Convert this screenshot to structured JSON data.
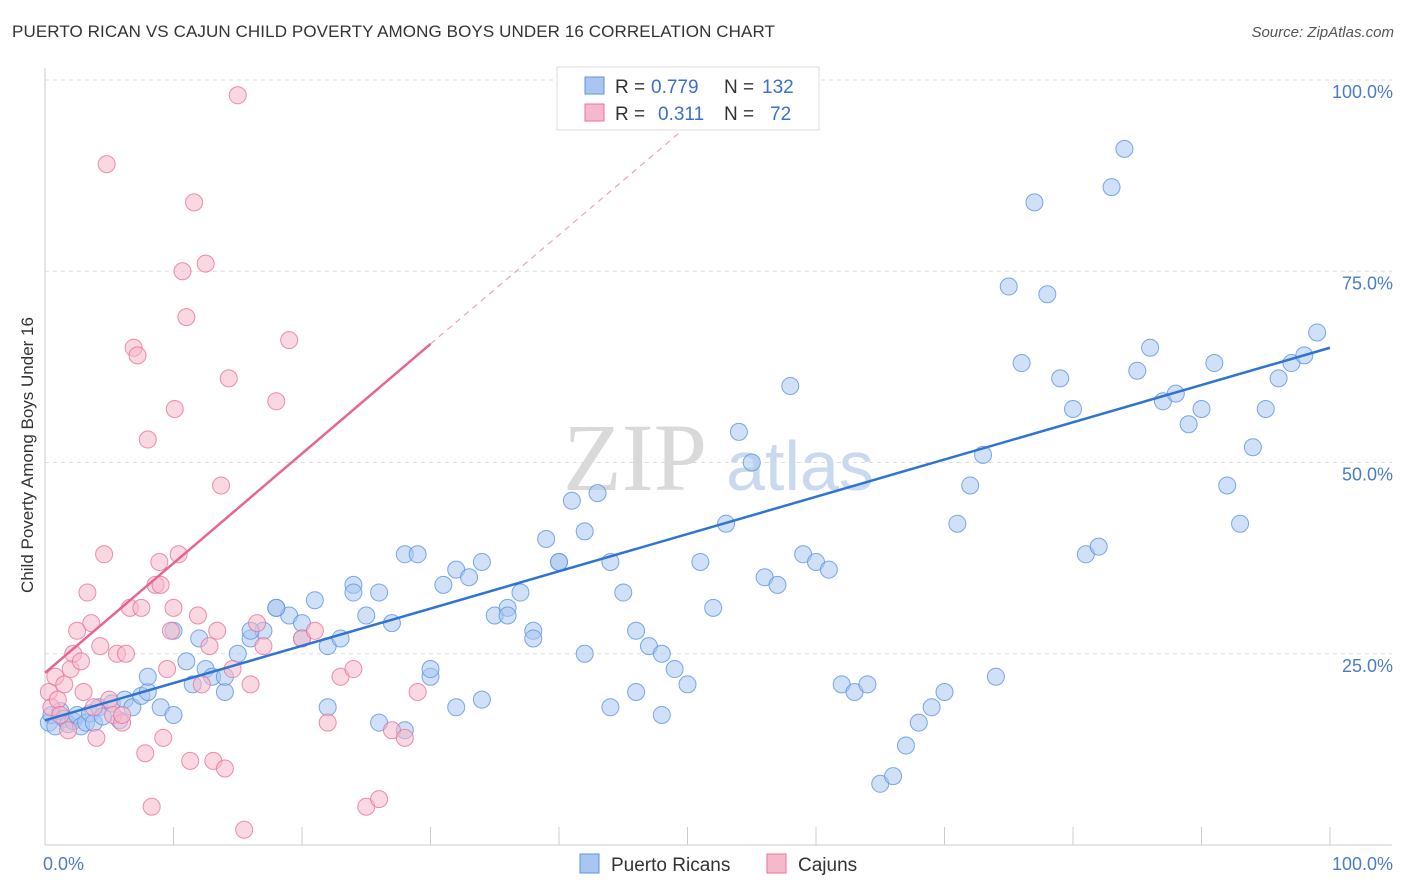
{
  "title": "PUERTO RICAN VS CAJUN CHILD POVERTY AMONG BOYS UNDER 16 CORRELATION CHART",
  "source": "Source: ZipAtlas.com",
  "watermark": {
    "zip": "ZIP",
    "atlas": "atlas"
  },
  "colors": {
    "blue": "#5b93e3",
    "blue_fill": "#a9c6f0",
    "pink": "#e8739a",
    "pink_fill": "#f6b8cb",
    "grid": "#dddddd",
    "tick_text": "#4a7cc9"
  },
  "chart_data": {
    "type": "scatter",
    "title": "PUERTO RICAN VS CAJUN CHILD POVERTY AMONG BOYS UNDER 16 CORRELATION CHART",
    "xlabel": "",
    "ylabel": "Child Poverty Among Boys Under 16",
    "xlim": [
      0,
      100
    ],
    "ylim": [
      0,
      100
    ],
    "x_tick_labels": [
      "0.0%",
      "100.0%"
    ],
    "y_tick_labels": [
      "25.0%",
      "50.0%",
      "75.0%",
      "100.0%"
    ],
    "y_ticks": [
      25,
      50,
      75,
      100
    ],
    "grid": true,
    "legend_top": [
      {
        "r_label": "R =",
        "r": "0.779",
        "n_label": "N =",
        "n": "132"
      },
      {
        "r_label": "R =",
        "r": "0.311",
        "n_label": "N =",
        "n": "72"
      }
    ],
    "legend_bottom": [
      "Puerto Ricans",
      "Cajuns"
    ],
    "series": [
      {
        "name": "Puerto Ricans",
        "trend": {
          "x": [
            0,
            100
          ],
          "y": [
            16.3,
            65.0
          ]
        },
        "points": [
          [
            0.3,
            16
          ],
          [
            0.5,
            17
          ],
          [
            0.8,
            15.5
          ],
          [
            1.2,
            17.5
          ],
          [
            1.5,
            16.5
          ],
          [
            1.8,
            15.8
          ],
          [
            2.2,
            16.2
          ],
          [
            2.5,
            17
          ],
          [
            2.8,
            15.5
          ],
          [
            3.2,
            16
          ],
          [
            3.5,
            17.2
          ],
          [
            3.8,
            16
          ],
          [
            4.2,
            18
          ],
          [
            4.5,
            16.8
          ],
          [
            5.2,
            18.5
          ],
          [
            5.8,
            16.3
          ],
          [
            6.2,
            19
          ],
          [
            6.8,
            18
          ],
          [
            7.5,
            19.5
          ],
          [
            8,
            20
          ],
          [
            9,
            18
          ],
          [
            10,
            17
          ],
          [
            11,
            24
          ],
          [
            11.5,
            21
          ],
          [
            12.5,
            23
          ],
          [
            13,
            22
          ],
          [
            14,
            20
          ],
          [
            15,
            25
          ],
          [
            16,
            27
          ],
          [
            17,
            28
          ],
          [
            18,
            31
          ],
          [
            19,
            30
          ],
          [
            20,
            29
          ],
          [
            21,
            32
          ],
          [
            22,
            26
          ],
          [
            23,
            27
          ],
          [
            24,
            34
          ],
          [
            25,
            30
          ],
          [
            26,
            33
          ],
          [
            27,
            29
          ],
          [
            28,
            38
          ],
          [
            29,
            38
          ],
          [
            30,
            22
          ],
          [
            31,
            34
          ],
          [
            32,
            36
          ],
          [
            33,
            35
          ],
          [
            34,
            37
          ],
          [
            35,
            30
          ],
          [
            36,
            31
          ],
          [
            37,
            33
          ],
          [
            38,
            28
          ],
          [
            39,
            40
          ],
          [
            40,
            37
          ],
          [
            41,
            45
          ],
          [
            42,
            41
          ],
          [
            43,
            46
          ],
          [
            44,
            37
          ],
          [
            45,
            33
          ],
          [
            46,
            28
          ],
          [
            47,
            26
          ],
          [
            48,
            25
          ],
          [
            49,
            23
          ],
          [
            50,
            21
          ],
          [
            51,
            37
          ],
          [
            52,
            31
          ],
          [
            53,
            42
          ],
          [
            54,
            54
          ],
          [
            55,
            50
          ],
          [
            56,
            35
          ],
          [
            57,
            34
          ],
          [
            58,
            60
          ],
          [
            59,
            38
          ],
          [
            60,
            37
          ],
          [
            61,
            36
          ],
          [
            62,
            21
          ],
          [
            63,
            20
          ],
          [
            64,
            21
          ],
          [
            65,
            8
          ],
          [
            66,
            9
          ],
          [
            67,
            13
          ],
          [
            68,
            16
          ],
          [
            69,
            18
          ],
          [
            70,
            20
          ],
          [
            71,
            42
          ],
          [
            72,
            47
          ],
          [
            73,
            51
          ],
          [
            74,
            22
          ],
          [
            75,
            73
          ],
          [
            76,
            63
          ],
          [
            77,
            84
          ],
          [
            78,
            72
          ],
          [
            79,
            61
          ],
          [
            80,
            57
          ],
          [
            81,
            38
          ],
          [
            82,
            39
          ],
          [
            83,
            86
          ],
          [
            84,
            91
          ],
          [
            85,
            62
          ],
          [
            86,
            65
          ],
          [
            87,
            58
          ],
          [
            88,
            59
          ],
          [
            89,
            55
          ],
          [
            90,
            57
          ],
          [
            91,
            63
          ],
          [
            92,
            47
          ],
          [
            93,
            42
          ],
          [
            94,
            52
          ],
          [
            95,
            57
          ],
          [
            96,
            61
          ],
          [
            97,
            63
          ],
          [
            98,
            64
          ],
          [
            99,
            67
          ],
          [
            18,
            31
          ],
          [
            20,
            27
          ],
          [
            22,
            18
          ],
          [
            24,
            33
          ],
          [
            26,
            16
          ],
          [
            28,
            15
          ],
          [
            30,
            23
          ],
          [
            32,
            18
          ],
          [
            34,
            19
          ],
          [
            36,
            30
          ],
          [
            38,
            27
          ],
          [
            40,
            37
          ],
          [
            42,
            25
          ],
          [
            44,
            18
          ],
          [
            46,
            20
          ],
          [
            48,
            17
          ],
          [
            12,
            27
          ],
          [
            14,
            22
          ],
          [
            16,
            28
          ],
          [
            10,
            28
          ],
          [
            8,
            22
          ]
        ]
      },
      {
        "name": "Cajuns",
        "trend": {
          "x": [
            0,
            30
          ],
          "y": [
            22.5,
            65.5
          ]
        },
        "trend_dashed": {
          "x": [
            30,
            50
          ],
          "y": [
            65.5,
            94
          ]
        },
        "points": [
          [
            0.3,
            20
          ],
          [
            0.5,
            18
          ],
          [
            0.8,
            22
          ],
          [
            1,
            19
          ],
          [
            1.2,
            17
          ],
          [
            1.5,
            21
          ],
          [
            1.8,
            15
          ],
          [
            2,
            23
          ],
          [
            2.2,
            25
          ],
          [
            2.5,
            28
          ],
          [
            2.8,
            24
          ],
          [
            3,
            20
          ],
          [
            3.3,
            33
          ],
          [
            3.6,
            29
          ],
          [
            3.8,
            18
          ],
          [
            4,
            14
          ],
          [
            4.3,
            26
          ],
          [
            4.6,
            38
          ],
          [
            4.8,
            89
          ],
          [
            5,
            19
          ],
          [
            5.3,
            17
          ],
          [
            5.6,
            25
          ],
          [
            6,
            16
          ],
          [
            6.3,
            25
          ],
          [
            6.6,
            31
          ],
          [
            6.9,
            65
          ],
          [
            7.2,
            64
          ],
          [
            7.5,
            31
          ],
          [
            7.8,
            12
          ],
          [
            8,
            53
          ],
          [
            8.3,
            5
          ],
          [
            8.6,
            34
          ],
          [
            8.9,
            37
          ],
          [
            9.2,
            14
          ],
          [
            9.5,
            23
          ],
          [
            9.8,
            28
          ],
          [
            10.1,
            57
          ],
          [
            10.4,
            38
          ],
          [
            10.7,
            75
          ],
          [
            11,
            69
          ],
          [
            11.3,
            11
          ],
          [
            11.6,
            84
          ],
          [
            11.9,
            30
          ],
          [
            12.2,
            21
          ],
          [
            12.5,
            76
          ],
          [
            12.8,
            26
          ],
          [
            13.1,
            11
          ],
          [
            13.4,
            28
          ],
          [
            13.7,
            47
          ],
          [
            14,
            10
          ],
          [
            14.3,
            61
          ],
          [
            14.6,
            23
          ],
          [
            15,
            98
          ],
          [
            15.5,
            2
          ],
          [
            16,
            21
          ],
          [
            16.5,
            29
          ],
          [
            17,
            26
          ],
          [
            18,
            58
          ],
          [
            19,
            66
          ],
          [
            20,
            27
          ],
          [
            21,
            28
          ],
          [
            22,
            16
          ],
          [
            23,
            22
          ],
          [
            24,
            23
          ],
          [
            25,
            5
          ],
          [
            26,
            6
          ],
          [
            27,
            15
          ],
          [
            28,
            14
          ],
          [
            29,
            20
          ],
          [
            9,
            34
          ],
          [
            10,
            31
          ],
          [
            6,
            17
          ]
        ]
      }
    ]
  }
}
